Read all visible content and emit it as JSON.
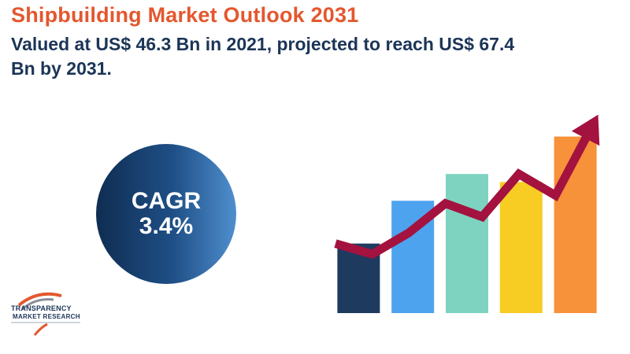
{
  "header": {
    "title": "Shipbuilding Market Outlook 2031",
    "subtitle": "Valued at US$ 46.3 Bn in 2021, projected to reach US$ 67.4 Bn by 2031."
  },
  "cagr": {
    "label": "CAGR",
    "value": "3.4%"
  },
  "logo": {
    "line1": "TRANSPARENCY",
    "line2": "MARKET RESEARCH"
  },
  "colors": {
    "title": "#e4572e",
    "subtitle": "#1b3557",
    "arrow": "#a4123f"
  },
  "chart_data": {
    "type": "bar",
    "categories": [
      "",
      "",
      "",
      "",
      ""
    ],
    "values": [
      26,
      42,
      52,
      49,
      66
    ],
    "colors": [
      "#1f3a5f",
      "#4ea3ee",
      "#7dd3c0",
      "#f7cc23",
      "#f7913a"
    ],
    "trend_arrow": [
      26,
      22,
      30,
      41,
      36,
      52,
      44,
      70
    ],
    "ylim": [
      0,
      100
    ],
    "grid": false,
    "legend": "none"
  }
}
